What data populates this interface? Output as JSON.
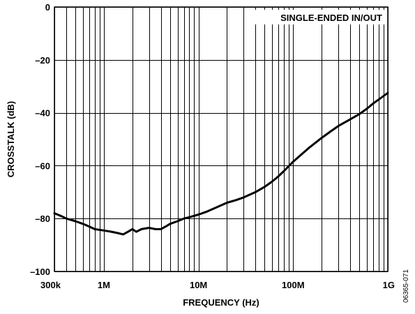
{
  "chart_data": {
    "type": "line",
    "title": "",
    "xlabel": "FREQUENCY (Hz)",
    "ylabel": "CROSSTALK (dB)",
    "x_scale": "log",
    "xlim": [
      300000,
      1000000000
    ],
    "ylim": [
      -100,
      0
    ],
    "x_ticks": [
      300000,
      1000000,
      10000000,
      100000000,
      1000000000
    ],
    "x_tick_labels": [
      "300k",
      "1M",
      "10M",
      "100M",
      "1G"
    ],
    "y_ticks": [
      0,
      -20,
      -40,
      -60,
      -80,
      -100
    ],
    "y_tick_labels": [
      "0",
      "–20",
      "–40",
      "–60",
      "–80",
      "–100"
    ],
    "grid": true,
    "annotation": "SINGLE-ENDED IN/OUT",
    "figure_id": "06365-071",
    "series": [
      {
        "x": [
          300000,
          350000,
          400000,
          500000,
          600000,
          700000,
          800000,
          1000000,
          1200000,
          1400000,
          1600000,
          1800000,
          2000000,
          2200000,
          2500000,
          3000000,
          3500000,
          4000000,
          4500000,
          5000000,
          6000000,
          7000000,
          8000000,
          10000000,
          12000000,
          15000000,
          20000000,
          25000000,
          30000000,
          40000000,
          50000000,
          60000000,
          70000000,
          80000000,
          100000000,
          120000000,
          150000000,
          200000000,
          250000000,
          300000000,
          400000000,
          500000000,
          600000000,
          700000000,
          800000000,
          1000000000
        ],
        "y": [
          -78,
          -79,
          -80,
          -81,
          -82,
          -83,
          -84,
          -84.5,
          -85,
          -85.5,
          -86,
          -85,
          -84,
          -85,
          -84,
          -83.5,
          -84,
          -84,
          -83,
          -82,
          -81,
          -80,
          -79.5,
          -78.5,
          -77.5,
          -76,
          -74,
          -73,
          -72,
          -70,
          -68,
          -66,
          -64,
          -62,
          -58.5,
          -56,
          -53,
          -49.5,
          -47,
          -45,
          -42.5,
          -40.5,
          -38.5,
          -36.5,
          -35,
          -32.5
        ]
      }
    ]
  }
}
